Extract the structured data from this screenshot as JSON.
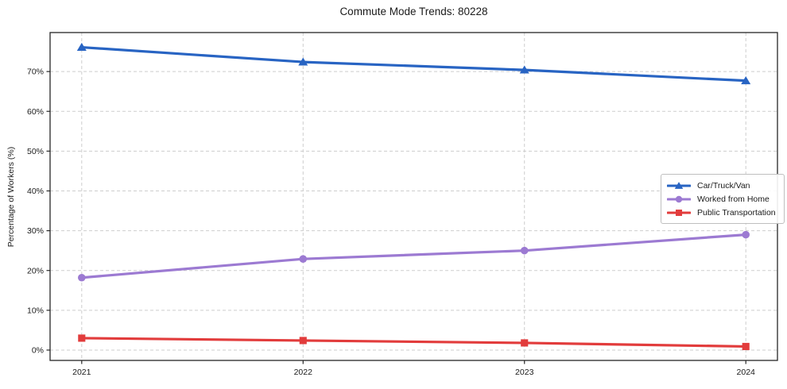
{
  "chart": {
    "title": "Commute Mode Trends: 80228",
    "ylabel": "Percentage of Workers (%)"
  },
  "chart_data": {
    "type": "line",
    "title": "Commute Mode Trends: 80228",
    "xlabel": "",
    "ylabel": "Percentage of Workers (%)",
    "categories": [
      "2021",
      "2022",
      "2023",
      "2024"
    ],
    "series": [
      {
        "name": "Car/Truck/Van",
        "values": [
          76.1,
          72.4,
          70.4,
          67.7
        ],
        "color": "#2864c3",
        "marker": "triangle"
      },
      {
        "name": "Worked from Home",
        "values": [
          18.2,
          22.9,
          25.0,
          29.0
        ],
        "color": "#9c7ad2",
        "marker": "circle"
      },
      {
        "name": "Public Transportation",
        "values": [
          3.0,
          2.4,
          1.8,
          0.9
        ],
        "color": "#e23c3c",
        "marker": "square"
      }
    ],
    "yticks": [
      0,
      10,
      20,
      30,
      40,
      50,
      60,
      70
    ],
    "ytick_suffix": "%",
    "ylim": [
      -2.6,
      79.8
    ],
    "grid": true,
    "grid_style": "dashed",
    "legend_position": "right-center",
    "colors": {
      "grid": "#cdcdcd",
      "spine": "#262626",
      "text": "#1a1a1a"
    }
  }
}
